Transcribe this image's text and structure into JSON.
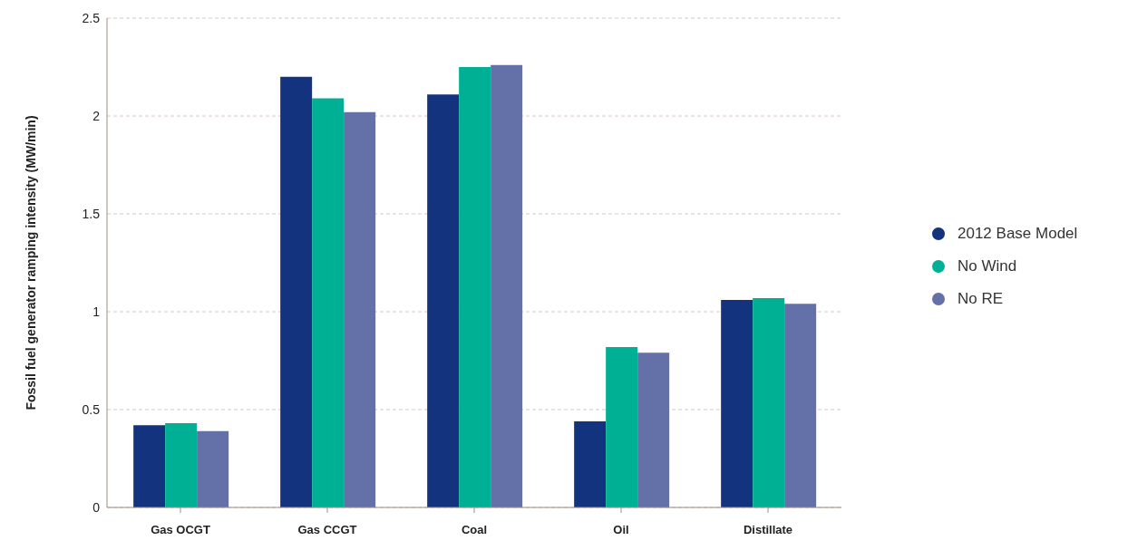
{
  "chart_data": {
    "type": "bar",
    "ylabel": "Fossil fuel generator ramping intensity (MW/min)",
    "categories": [
      "Gas OCGT",
      "Gas CCGT",
      "Coal",
      "Oil",
      "Distillate"
    ],
    "series": [
      {
        "name": "2012 Base Model",
        "color": "#14337f",
        "values": [
          0.42,
          2.2,
          2.11,
          0.44,
          1.06
        ]
      },
      {
        "name": "No Wind",
        "color": "#00b094",
        "values": [
          0.43,
          2.09,
          2.25,
          0.82,
          1.07
        ]
      },
      {
        "name": "No RE",
        "color": "#6470a8",
        "values": [
          0.39,
          2.02,
          2.26,
          0.79,
          1.04
        ]
      }
    ],
    "ylim": [
      0,
      2.5
    ],
    "yticks": [
      0,
      0.5,
      1,
      1.5,
      2,
      2.5
    ],
    "grid": "y",
    "legend": "right"
  }
}
